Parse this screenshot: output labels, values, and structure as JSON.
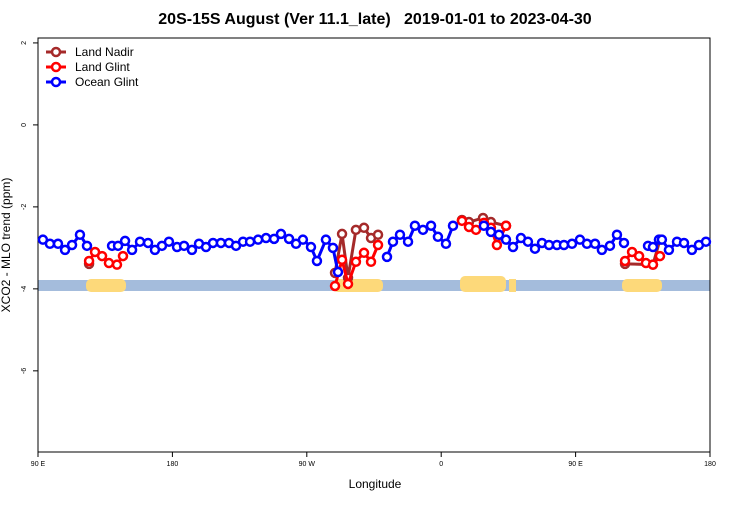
{
  "chart_data": {
    "type": "line",
    "title": "20S-15S August (Ver 11.1_late)   2019-01-01 to 2023-04-30",
    "x_label": "Longitude",
    "y_label": "XCO2 - MLO trend (ppm)",
    "xlim": [
      90,
      540
    ],
    "ylim": [
      -7.98,
      2.12
    ],
    "xticks": [
      {
        "value": 90,
        "label": "90 E"
      },
      180,
      {
        "value": 270,
        "label": "90 W"
      },
      {
        "value": 360,
        "label": "0"
      },
      {
        "value": 450,
        "label": "90 E"
      },
      {
        "value": 540,
        "label": "180"
      }
    ],
    "yticks": [
      2,
      0,
      -2,
      -4,
      -6
    ],
    "legend_position": "top-left",
    "series": [
      {
        "name": "Land Nadir",
        "color": "#a52a2a",
        "x": [
          124.2,
          null,
          288.9,
          293.6,
          297.6,
          302.9,
          308.3,
          313,
          317.7,
          null,
          373.9,
          378.6,
          388,
          393.3,
          403.4,
          null,
          483.1,
          501.8,
          506.5
        ],
        "values": [
          -3.39,
          null,
          -3.61,
          -2.66,
          -3.73,
          -2.56,
          -2.51,
          -2.76,
          -2.68,
          null,
          -2.32,
          -2.37,
          -2.27,
          -2.37,
          -2.46,
          null,
          -3.39,
          -3.41,
          -2.8
        ]
      },
      {
        "name": "Land Glint",
        "color": "#ff0000",
        "x": [
          124.2,
          128.2,
          132.9,
          137.5,
          142.9,
          146.9,
          null,
          288.9,
          293.6,
          297.6,
          302.9,
          308.3,
          313,
          317.7,
          null,
          373.9,
          378.6,
          383.3,
          388.6,
          393.3,
          397.3,
          403.4,
          null,
          483.1,
          487.8,
          492.5,
          497.1,
          501.8,
          506.5
        ],
        "values": [
          -3.32,
          -3.1,
          -3.2,
          -3.37,
          -3.41,
          -3.2,
          null,
          -3.93,
          -3.29,
          -3.88,
          -3.34,
          -3.12,
          -3.34,
          -2.93,
          null,
          -2.34,
          -2.49,
          -2.56,
          -2.39,
          -2.51,
          -2.93,
          -2.46,
          null,
          -3.32,
          -3.1,
          -3.2,
          -3.37,
          -3.41,
          -3.2
        ]
      },
      {
        "name": "Ocean Glint",
        "color": "#0000ff",
        "x": [
          93.3,
          98,
          103.4,
          108.1,
          112.8,
          118.1,
          122.8,
          null,
          139.6,
          143.6,
          148.3,
          153,
          158.3,
          163.7,
          168.3,
          173,
          177.7,
          183.1,
          187.8,
          193.1,
          197.8,
          202.5,
          207.2,
          212.5,
          217.9,
          222.6,
          227.3,
          232,
          237.4,
          242.7,
          248.1,
          252.7,
          258.1,
          262.8,
          267.4,
          272.8,
          276.8,
          282.8,
          287.5,
          290.9,
          null,
          323.7,
          327.7,
          332.4,
          337.8,
          342.4,
          347.8,
          353.2,
          357.8,
          363.2,
          367.9,
          null,
          388.6,
          393.3,
          398.7,
          403.4,
          408.1,
          413.4,
          418.1,
          422.8,
          427.5,
          432.2,
          437.5,
          442.2,
          447.6,
          452.9,
          457.6,
          463,
          467.6,
          473,
          477.7,
          482.4,
          null,
          498.5,
          501.8,
          505.8,
          507.8,
          512.5,
          517.9,
          522.6,
          527.9,
          532.6,
          537.3
        ],
        "values": [
          -2.8,
          -2.9,
          -2.9,
          -3.05,
          -2.93,
          -2.68,
          -2.95,
          null,
          -2.95,
          -2.95,
          -2.83,
          -3.05,
          -2.85,
          -2.88,
          -3.05,
          -2.95,
          -2.85,
          -2.98,
          -2.95,
          -3.05,
          -2.9,
          -2.98,
          -2.88,
          -2.88,
          -2.88,
          -2.95,
          -2.85,
          -2.85,
          -2.8,
          -2.76,
          -2.78,
          -2.66,
          -2.78,
          -2.9,
          -2.8,
          -2.98,
          -3.32,
          -2.8,
          -3,
          -3.59,
          null,
          -3.22,
          -2.85,
          -2.68,
          -2.85,
          -2.46,
          -2.56,
          -2.46,
          -2.73,
          -2.9,
          -2.46,
          null,
          -2.46,
          -2.61,
          -2.68,
          -2.8,
          -2.98,
          -2.76,
          -2.85,
          -3.02,
          -2.88,
          -2.93,
          -2.93,
          -2.93,
          -2.9,
          -2.8,
          -2.9,
          -2.9,
          -3.05,
          -2.95,
          -2.68,
          -2.88,
          null,
          -2.95,
          -2.98,
          -2.8,
          -2.8,
          -3.05,
          -2.85,
          -2.88,
          -3.05,
          -2.93,
          -2.85
        ]
      }
    ]
  }
}
